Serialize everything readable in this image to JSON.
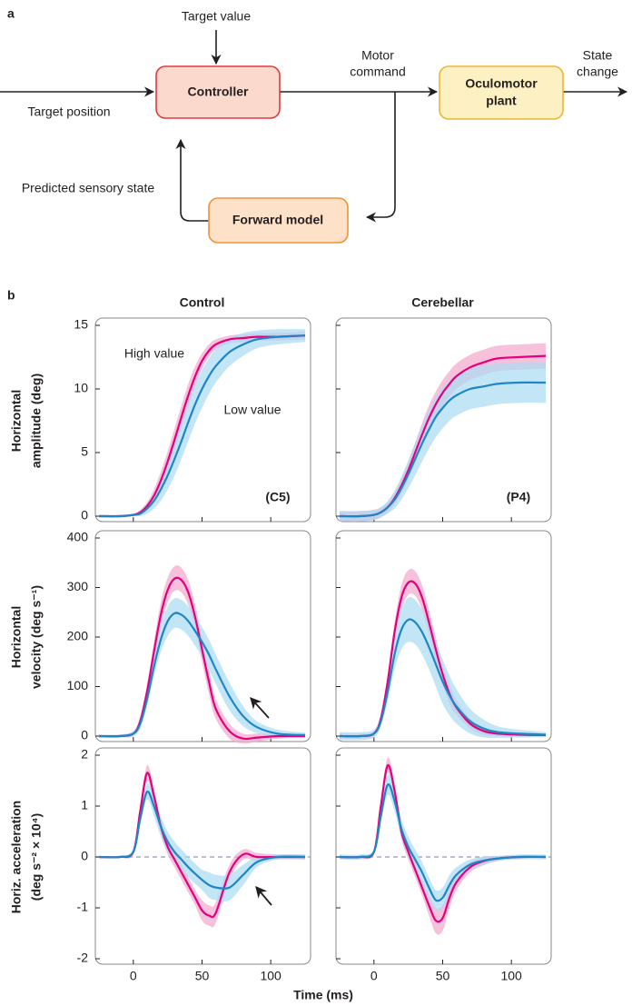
{
  "panel_labels": [
    "a",
    "b"
  ],
  "diagram": {
    "nodes": [
      {
        "label": [
          "Controller"
        ]
      },
      {
        "label": [
          "Oculomotor",
          "plant"
        ]
      },
      {
        "label": [
          "Forward model"
        ]
      }
    ],
    "edge_labels": [
      {
        "label": [
          "Target value"
        ]
      },
      {
        "label": [
          "Target position"
        ]
      },
      {
        "label": [
          "Motor",
          "command"
        ]
      },
      {
        "label": [
          "State",
          "change"
        ]
      },
      {
        "label": [
          "Predicted sensory state"
        ]
      }
    ]
  },
  "chart_data": [
    {
      "type": "line",
      "title": "Control",
      "ylabel": [
        "Horizontal",
        "amplitude (deg)"
      ],
      "note": "(C5)",
      "show_xtick_labels": false,
      "show_ytick_labels": true,
      "x": [
        -25,
        -10,
        0,
        5,
        10,
        15,
        20,
        25,
        30,
        35,
        40,
        45,
        50,
        55,
        60,
        70,
        80,
        90,
        105,
        125
      ],
      "xlim": [
        -25,
        125
      ],
      "xticks": [
        0,
        50,
        100
      ],
      "ylim": [
        0,
        15
      ],
      "yticks": [
        0,
        5,
        10,
        15
      ],
      "series": [
        {
          "name": "High value",
          "color": "#e4007d",
          "band_color": "#f3a6cc",
          "values": [
            0,
            0,
            0.1,
            0.3,
            0.8,
            1.6,
            2.8,
            4.3,
            6.0,
            7.8,
            9.5,
            11.0,
            12.2,
            13.0,
            13.5,
            13.9,
            14.0,
            14.1,
            14.1,
            14.2
          ],
          "error": [
            0.1,
            0.1,
            0.1,
            0.2,
            0.3,
            0.5,
            0.7,
            0.8,
            0.9,
            0.9,
            0.9,
            0.8,
            0.6,
            0.5,
            0.4,
            0.3,
            0.3,
            0.3,
            0.3,
            0.3
          ]
        },
        {
          "name": "Low value",
          "color": "#1e86c6",
          "band_color": "#a9dbf4",
          "values": [
            0,
            0,
            0.1,
            0.2,
            0.6,
            1.2,
            2.1,
            3.2,
            4.5,
            5.9,
            7.4,
            8.8,
            10.0,
            11.0,
            11.8,
            12.9,
            13.5,
            13.9,
            14.1,
            14.2
          ],
          "error": [
            0.1,
            0.1,
            0.1,
            0.2,
            0.4,
            0.6,
            0.9,
            1.1,
            1.3,
            1.4,
            1.5,
            1.5,
            1.5,
            1.4,
            1.3,
            1.1,
            0.9,
            0.7,
            0.6,
            0.5
          ]
        }
      ]
    },
    {
      "type": "line",
      "title": "Cerebellar",
      "note": "(P4)",
      "show_xtick_labels": false,
      "show_ytick_labels": false,
      "x": [
        -25,
        -10,
        0,
        5,
        10,
        15,
        20,
        25,
        30,
        35,
        40,
        45,
        50,
        55,
        60,
        70,
        80,
        90,
        105,
        125
      ],
      "xlim": [
        -25,
        125
      ],
      "xticks": [
        0,
        50,
        100
      ],
      "ylim": [
        0,
        15
      ],
      "yticks": [
        0,
        5,
        10,
        15
      ],
      "series": [
        {
          "color": "#e4007d",
          "band_color": "#f3a6cc",
          "values": [
            0,
            0,
            0.1,
            0.3,
            0.7,
            1.4,
            2.4,
            3.6,
            5.0,
            6.4,
            7.7,
            8.8,
            9.7,
            10.4,
            11.0,
            11.7,
            12.1,
            12.4,
            12.5,
            12.6
          ],
          "error": [
            0.4,
            0.4,
            0.4,
            0.4,
            0.4,
            0.5,
            0.6,
            0.7,
            0.8,
            0.9,
            1.0,
            1.0,
            1.0,
            1.0,
            1.0,
            1.0,
            1.0,
            1.0,
            1.0,
            1.0
          ]
        },
        {
          "color": "#1e86c6",
          "band_color": "#a9dbf4",
          "values": [
            0,
            0,
            0.1,
            0.3,
            0.7,
            1.3,
            2.2,
            3.3,
            4.5,
            5.7,
            6.8,
            7.8,
            8.5,
            9.1,
            9.5,
            10.0,
            10.2,
            10.4,
            10.5,
            10.5
          ],
          "error": [
            0.4,
            0.4,
            0.4,
            0.4,
            0.5,
            0.7,
            0.9,
            1.1,
            1.3,
            1.4,
            1.5,
            1.6,
            1.6,
            1.6,
            1.6,
            1.6,
            1.6,
            1.6,
            1.6,
            1.6
          ]
        }
      ]
    },
    {
      "type": "line",
      "ylabel": [
        "Horizontal",
        "velocity (deg s⁻¹)"
      ],
      "show_xtick_labels": false,
      "show_ytick_labels": true,
      "x": [
        -25,
        -10,
        0,
        5,
        10,
        15,
        20,
        25,
        30,
        35,
        40,
        45,
        50,
        55,
        60,
        70,
        80,
        90,
        105,
        125
      ],
      "xlim": [
        -25,
        125
      ],
      "xticks": [
        0,
        50,
        100
      ],
      "ylim": [
        0,
        400
      ],
      "yticks": [
        0,
        100,
        200,
        300,
        400
      ],
      "series": [
        {
          "color": "#e4007d",
          "band_color": "#f3a6cc",
          "values": [
            0,
            0,
            5,
            30,
            90,
            170,
            245,
            295,
            318,
            315,
            290,
            240,
            175,
            110,
            55,
            10,
            -5,
            -3,
            0,
            0
          ],
          "error": [
            3,
            3,
            5,
            10,
            15,
            20,
            25,
            25,
            25,
            25,
            25,
            25,
            25,
            25,
            20,
            15,
            10,
            8,
            5,
            3
          ]
        },
        {
          "color": "#1e86c6",
          "band_color": "#a9dbf4",
          "values": [
            0,
            0,
            5,
            25,
            75,
            140,
            195,
            232,
            248,
            245,
            232,
            212,
            190,
            165,
            135,
            80,
            40,
            18,
            5,
            2
          ],
          "error": [
            3,
            3,
            5,
            10,
            15,
            20,
            25,
            30,
            30,
            30,
            30,
            30,
            30,
            30,
            30,
            28,
            20,
            12,
            8,
            5
          ]
        }
      ]
    },
    {
      "type": "line",
      "show_xtick_labels": false,
      "show_ytick_labels": false,
      "x": [
        -25,
        -10,
        0,
        5,
        10,
        15,
        20,
        25,
        30,
        35,
        40,
        45,
        50,
        55,
        60,
        70,
        80,
        90,
        105,
        125
      ],
      "xlim": [
        -25,
        125
      ],
      "xticks": [
        0,
        50,
        100
      ],
      "ylim": [
        0,
        400
      ],
      "yticks": [
        0,
        100,
        200,
        300,
        400
      ],
      "series": [
        {
          "color": "#e4007d",
          "band_color": "#f3a6cc",
          "values": [
            0,
            0,
            5,
            35,
            110,
            210,
            280,
            310,
            308,
            280,
            230,
            175,
            125,
            85,
            58,
            25,
            10,
            5,
            3,
            2
          ],
          "error": [
            5,
            5,
            5,
            10,
            15,
            20,
            25,
            25,
            25,
            25,
            25,
            25,
            20,
            20,
            15,
            10,
            8,
            5,
            4,
            3
          ]
        },
        {
          "color": "#1e86c6",
          "band_color": "#a9dbf4",
          "values": [
            0,
            0,
            5,
            30,
            90,
            165,
            215,
            235,
            230,
            210,
            180,
            145,
            110,
            82,
            60,
            30,
            15,
            8,
            5,
            3
          ],
          "error": [
            8,
            8,
            8,
            10,
            20,
            30,
            40,
            45,
            45,
            45,
            45,
            45,
            45,
            40,
            35,
            25,
            18,
            12,
            8,
            5
          ]
        }
      ]
    },
    {
      "type": "line",
      "ylabel": [
        "Horiz. acceleration",
        "(deg s⁻² × 10⁴)"
      ],
      "xlabel": "Time (ms)",
      "zero_line": true,
      "show_xtick_labels": true,
      "show_ytick_labels": true,
      "x": [
        -25,
        -10,
        0,
        5,
        10,
        15,
        20,
        25,
        30,
        35,
        40,
        45,
        50,
        55,
        60,
        70,
        80,
        90,
        105,
        125
      ],
      "xlim": [
        -25,
        125
      ],
      "xticks": [
        0,
        50,
        100
      ],
      "ylim": [
        -2,
        2
      ],
      "yticks": [
        -2,
        -1,
        0,
        1,
        2
      ],
      "series": [
        {
          "color": "#e4007d",
          "band_color": "#f3a6cc",
          "values": [
            0,
            0,
            0.1,
            0.9,
            1.65,
            1.2,
            0.6,
            0.2,
            -0.05,
            -0.3,
            -0.55,
            -0.8,
            -1.05,
            -1.15,
            -1.1,
            -0.3,
            0.05,
            0.0,
            0,
            0
          ],
          "error": [
            0.02,
            0.02,
            0.05,
            0.1,
            0.15,
            0.15,
            0.15,
            0.15,
            0.15,
            0.15,
            0.15,
            0.15,
            0.2,
            0.2,
            0.2,
            0.15,
            0.1,
            0.08,
            0.05,
            0.05
          ]
        },
        {
          "color": "#1e86c6",
          "band_color": "#a9dbf4",
          "values": [
            0,
            0,
            0.1,
            0.75,
            1.28,
            1.0,
            0.6,
            0.3,
            0.1,
            -0.05,
            -0.2,
            -0.33,
            -0.45,
            -0.55,
            -0.6,
            -0.6,
            -0.35,
            -0.1,
            0,
            0
          ],
          "error": [
            0.02,
            0.02,
            0.05,
            0.1,
            0.15,
            0.2,
            0.2,
            0.2,
            0.2,
            0.2,
            0.2,
            0.2,
            0.2,
            0.25,
            0.25,
            0.25,
            0.2,
            0.1,
            0.05,
            0.05
          ]
        }
      ]
    },
    {
      "type": "line",
      "zero_line": true,
      "show_xtick_labels": true,
      "show_ytick_labels": false,
      "x": [
        -25,
        -10,
        0,
        5,
        10,
        15,
        20,
        25,
        30,
        35,
        40,
        45,
        50,
        55,
        60,
        70,
        80,
        90,
        105,
        125
      ],
      "xlim": [
        -25,
        125
      ],
      "xticks": [
        0,
        50,
        100
      ],
      "ylim": [
        -2,
        2
      ],
      "yticks": [
        -2,
        -1,
        0,
        1,
        2
      ],
      "series": [
        {
          "color": "#e4007d",
          "band_color": "#f3a6cc",
          "values": [
            0,
            0,
            0.1,
            1.0,
            1.8,
            1.3,
            0.5,
            0.1,
            -0.25,
            -0.6,
            -0.95,
            -1.25,
            -1.2,
            -0.8,
            -0.5,
            -0.2,
            -0.08,
            -0.03,
            0,
            0
          ],
          "error": [
            0.03,
            0.03,
            0.05,
            0.1,
            0.15,
            0.15,
            0.15,
            0.15,
            0.15,
            0.15,
            0.2,
            0.25,
            0.25,
            0.2,
            0.15,
            0.1,
            0.08,
            0.05,
            0.03,
            0.03
          ]
        },
        {
          "color": "#1e86c6",
          "band_color": "#a9dbf4",
          "values": [
            0,
            0,
            0.1,
            0.8,
            1.42,
            1.1,
            0.55,
            0.2,
            -0.05,
            -0.3,
            -0.6,
            -0.85,
            -0.8,
            -0.55,
            -0.35,
            -0.15,
            -0.07,
            -0.03,
            0,
            0
          ],
          "error": [
            0.05,
            0.05,
            0.05,
            0.1,
            0.2,
            0.2,
            0.2,
            0.2,
            0.2,
            0.2,
            0.2,
            0.2,
            0.2,
            0.2,
            0.15,
            0.1,
            0.08,
            0.05,
            0.05,
            0.05
          ]
        }
      ]
    }
  ]
}
